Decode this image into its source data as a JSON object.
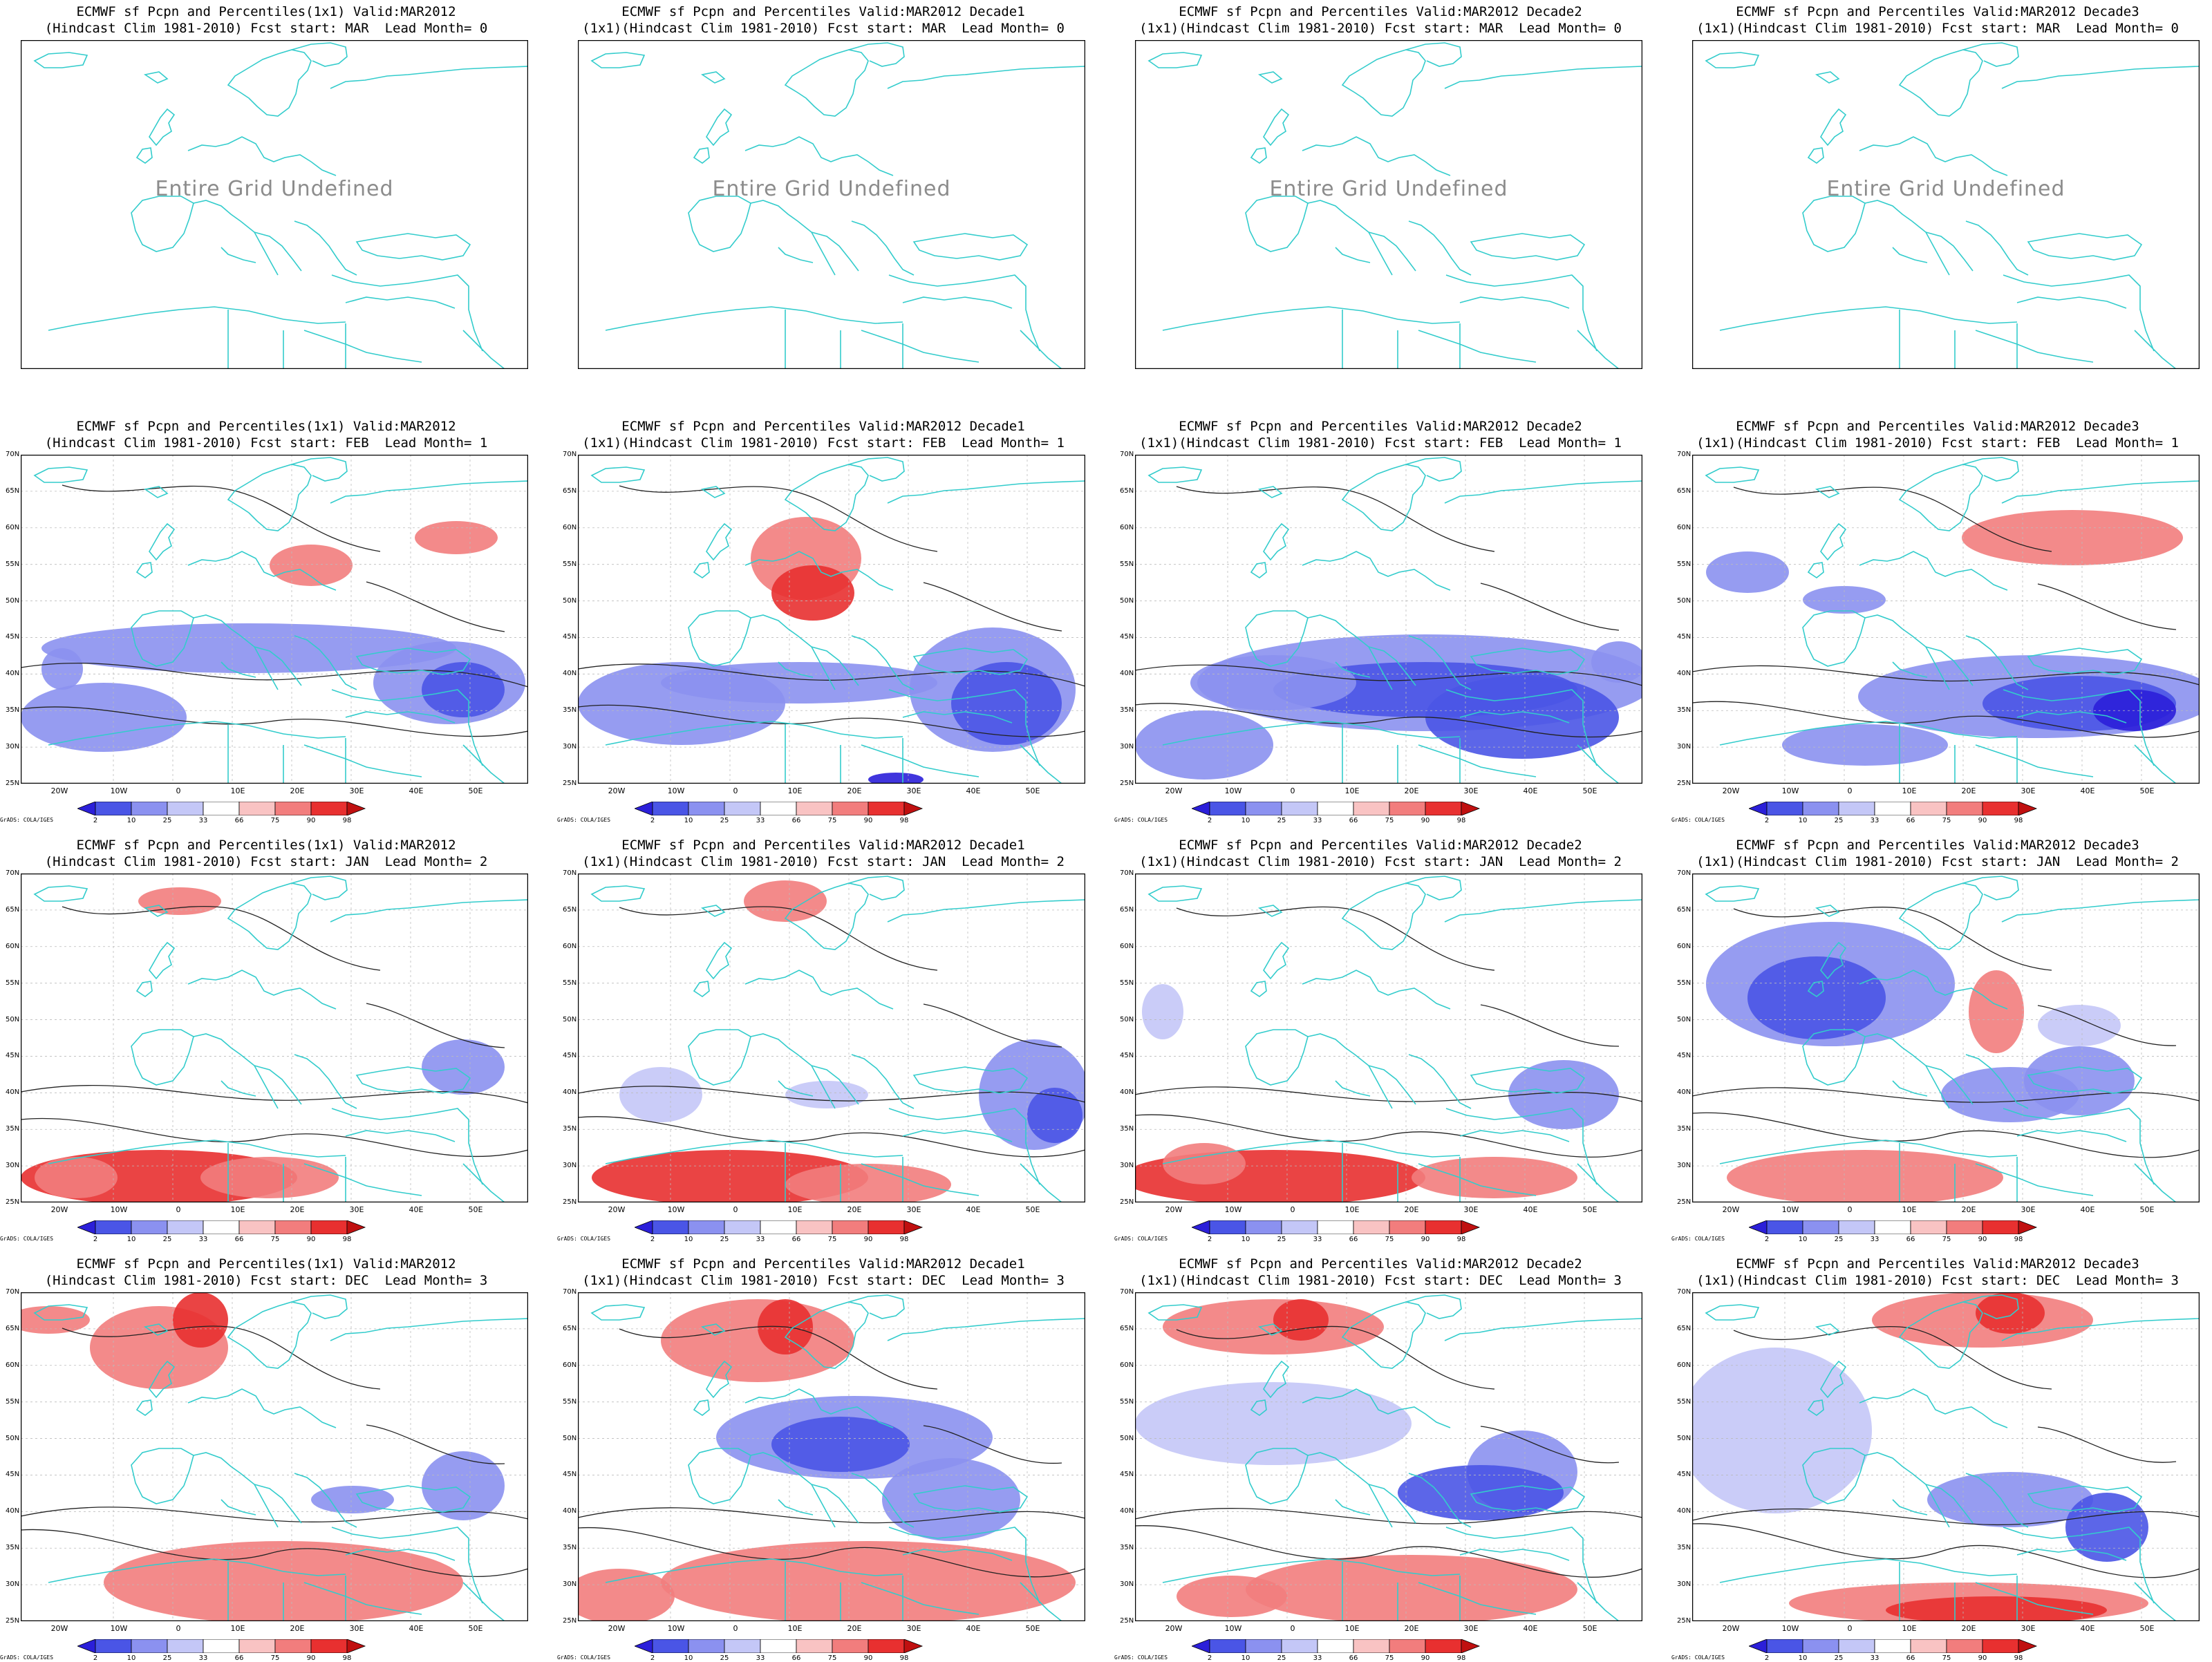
{
  "map_data": {
    "type": "grid-of-maps",
    "colorbar_levels": [
      "2",
      "10",
      "25",
      "33",
      "66",
      "75",
      "90",
      "98"
    ],
    "colorbar_colors": [
      "#2b1fd9",
      "#4a55e6",
      "#8b91f0",
      "#c4c7f7",
      "#ffffff",
      "#f9c3c3",
      "#f27d7d",
      "#e83030",
      "#c01010"
    ],
    "coast_color": "#33cccc",
    "lat_labels": [
      "70N",
      "65N",
      "60N",
      "55N",
      "50N",
      "45N",
      "40N",
      "35N",
      "30N",
      "25N"
    ],
    "lon_labels": [
      "20W",
      "10W",
      "0",
      "10E",
      "20E",
      "30E",
      "40E",
      "50E"
    ],
    "credit": "GrADS: COLA/IGES",
    "undefined_text": "Entire Grid Undefined",
    "rows": [
      {
        "lead": 0,
        "panels": [
          {
            "t1": "ECMWF sf Pcpn and Percentiles(1x1) Valid:MAR2012",
            "t2": "(Hindcast Clim 1981-2010) Fcst start: MAR  Lead Month= 0"
          },
          {
            "t1": "ECMWF sf Pcpn and Percentiles Valid:MAR2012 Decade1",
            "t2": "(1x1)(Hindcast Clim 1981-2010) Fcst start: MAR  Lead Month= 0"
          },
          {
            "t1": "ECMWF sf Pcpn and Percentiles Valid:MAR2012 Decade2",
            "t2": "(1x1)(Hindcast Clim 1981-2010) Fcst start: MAR  Lead Month= 0"
          },
          {
            "t1": "ECMWF sf Pcpn and Percentiles Valid:MAR2012 Decade3",
            "t2": "(1x1)(Hindcast Clim 1981-2010) Fcst start: MAR  Lead Month= 0"
          }
        ]
      },
      {
        "lead": 1,
        "panels": [
          {
            "t1": "ECMWF sf Pcpn and Percentiles(1x1) Valid:MAR2012",
            "t2": "(Hindcast Clim 1981-2010) Fcst start: FEB  Lead Month= 1"
          },
          {
            "t1": "ECMWF sf Pcpn and Percentiles Valid:MAR2012 Decade1",
            "t2": "(1x1)(Hindcast Clim 1981-2010) Fcst start: FEB  Lead Month= 1"
          },
          {
            "t1": "ECMWF sf Pcpn and Percentiles Valid:MAR2012 Decade2",
            "t2": "(1x1)(Hindcast Clim 1981-2010) Fcst start: FEB  Lead Month= 1"
          },
          {
            "t1": "ECMWF sf Pcpn and Percentiles Valid:MAR2012 Decade3",
            "t2": "(1x1)(Hindcast Clim 1981-2010) Fcst start: FEB  Lead Month= 1"
          }
        ]
      },
      {
        "lead": 2,
        "panels": [
          {
            "t1": "ECMWF sf Pcpn and Percentiles(1x1) Valid:MAR2012",
            "t2": "(Hindcast Clim 1981-2010) Fcst start: JAN  Lead Month= 2"
          },
          {
            "t1": "ECMWF sf Pcpn and Percentiles Valid:MAR2012 Decade1",
            "t2": "(1x1)(Hindcast Clim 1981-2010) Fcst start: JAN  Lead Month= 2"
          },
          {
            "t1": "ECMWF sf Pcpn and Percentiles Valid:MAR2012 Decade2",
            "t2": "(1x1)(Hindcast Clim 1981-2010) Fcst start: JAN  Lead Month= 2"
          },
          {
            "t1": "ECMWF sf Pcpn and Percentiles Valid:MAR2012 Decade3",
            "t2": "(1x1)(Hindcast Clim 1981-2010) Fcst start: JAN  Lead Month= 2"
          }
        ]
      },
      {
        "lead": 3,
        "panels": [
          {
            "t1": "ECMWF sf Pcpn and Percentiles(1x1) Valid:MAR2012",
            "t2": "(Hindcast Clim 1981-2010) Fcst start: DEC  Lead Month= 3"
          },
          {
            "t1": "ECMWF sf Pcpn and Percentiles Valid:MAR2012 Decade1",
            "t2": "(1x1)(Hindcast Clim 1981-2010) Fcst start: DEC  Lead Month= 3"
          },
          {
            "t1": "ECMWF sf Pcpn and Percentiles Valid:MAR2012 Decade2",
            "t2": "(1x1)(Hindcast Clim 1981-2010) Fcst start: DEC  Lead Month= 3"
          },
          {
            "t1": "ECMWF sf Pcpn and Percentiles Valid:MAR2012 Decade3",
            "t2": "(1x1)(Hindcast Clim 1981-2010) Fcst start: DEC  Lead Month= 3"
          }
        ]
      }
    ]
  }
}
